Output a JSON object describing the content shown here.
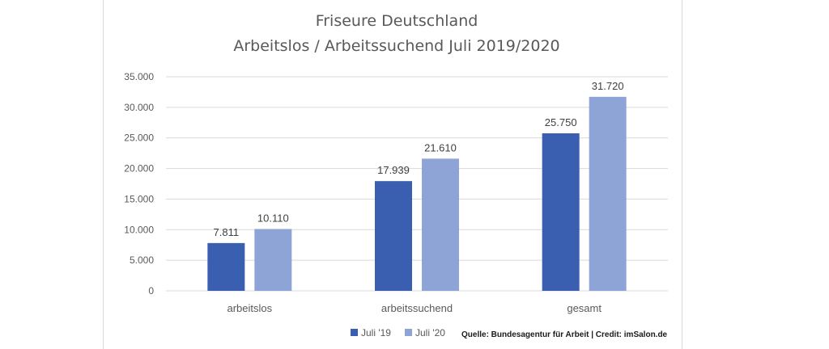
{
  "chart_data": {
    "type": "bar",
    "title": "Friseure Deutschland",
    "subtitle": "Arbeitslos / Arbeitssuchend Juli 2019/2020",
    "categories": [
      "arbeitslos",
      "arbeitssuchend",
      "gesamt"
    ],
    "series": [
      {
        "name": "Juli '19",
        "values": [
          7811,
          17939,
          25750
        ],
        "labels": [
          "7.811",
          "17.939",
          "25.750"
        ],
        "color": "#3a5fb0"
      },
      {
        "name": "Juli '20",
        "values": [
          10110,
          21610,
          31720
        ],
        "labels": [
          "10.110",
          "21.610",
          "31.720"
        ],
        "color": "#8ea3d6"
      }
    ],
    "yticks": [
      "0",
      "5.000",
      "10.000",
      "15.000",
      "20.000",
      "25.000",
      "30.000",
      "35.000"
    ],
    "ylim": [
      0,
      35000
    ],
    "ystep": 5000,
    "grid": true,
    "legend_position": "bottom",
    "source_note": "Quelle: Bundesagentur für Arbeit | Credit: imSalon.de"
  }
}
